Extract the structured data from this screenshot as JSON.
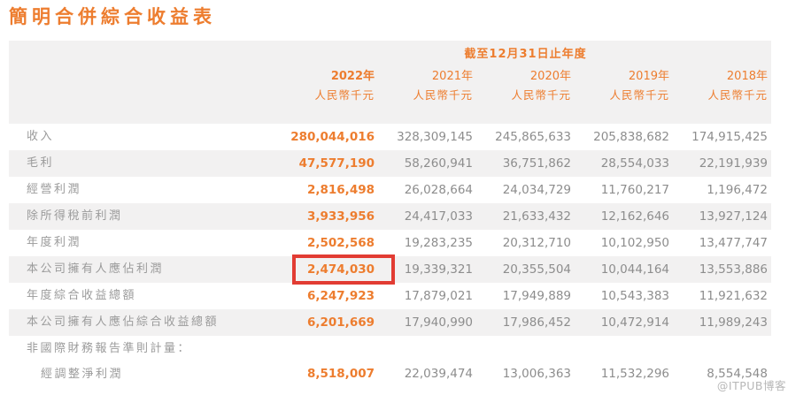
{
  "page": {
    "title": "簡明合併綜合收益表",
    "watermark": "@ITPUB博客"
  },
  "colors": {
    "accent_orange": "#ED7D2F",
    "label_gray": "#9B9B9B",
    "value_gray": "#8D8D8D",
    "panel_gray": "#F2F1F1",
    "highlight_red": "#E23C33"
  },
  "table": {
    "period_header": "截至12月31日止年度",
    "unit_label": "人民幣千元",
    "years": [
      "2022年",
      "2021年",
      "2020年",
      "2019年",
      "2018年"
    ],
    "current_year_index": 0,
    "rows": [
      {
        "label": "收入",
        "values": [
          "280,044,016",
          "328,309,145",
          "245,865,633",
          "205,838,682",
          "174,915,425"
        ]
      },
      {
        "label": "毛利",
        "values": [
          "47,577,190",
          "58,260,941",
          "36,751,862",
          "28,554,033",
          "22,191,939"
        ]
      },
      {
        "label": "經營利潤",
        "values": [
          "2,816,498",
          "26,028,664",
          "24,034,729",
          "11,760,217",
          "1,196,472"
        ]
      },
      {
        "label": "除所得稅前利潤",
        "values": [
          "3,933,956",
          "24,417,033",
          "21,633,432",
          "12,162,646",
          "13,927,124"
        ]
      },
      {
        "label": "年度利潤",
        "values": [
          "2,502,568",
          "19,283,235",
          "20,312,710",
          "10,102,950",
          "13,477,747"
        ]
      },
      {
        "label": "本公司擁有人應佔利潤",
        "values": [
          "2,474,030",
          "19,339,321",
          "20,355,504",
          "10,044,164",
          "13,553,886"
        ],
        "highlight_col": 0
      },
      {
        "label": "年度綜合收益總額",
        "values": [
          "6,247,923",
          "17,879,021",
          "17,949,889",
          "10,543,383",
          "11,921,632"
        ]
      },
      {
        "label": "本公司擁有人應佔綜合收益總額",
        "values": [
          "6,201,669",
          "17,940,990",
          "17,986,452",
          "10,472,914",
          "11,989,243"
        ]
      },
      {
        "label": "非國際財務報告準則計量：",
        "values": [
          "",
          "",
          "",
          "",
          ""
        ]
      },
      {
        "label": "經調整淨利潤",
        "values": [
          "8,518,007",
          "22,039,474",
          "13,006,363",
          "11,532,296",
          "8,554,548"
        ],
        "indent": true
      }
    ]
  }
}
